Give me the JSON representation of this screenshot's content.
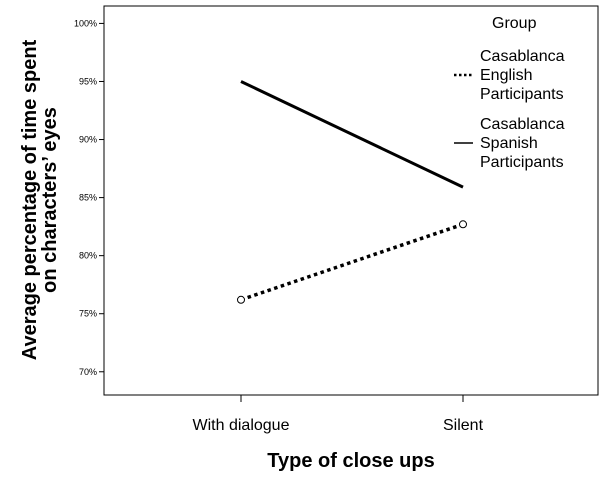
{
  "chart_data": {
    "type": "line",
    "categories": [
      "With dialogue",
      "Silent"
    ],
    "series": [
      {
        "name": "Casablanca English Participants",
        "values": [
          76.2,
          82.7
        ],
        "style": "dotted",
        "markers": true,
        "color": "#000000"
      },
      {
        "name": "Casablanca Spanish Participants",
        "values": [
          95.0,
          85.9
        ],
        "style": "solid",
        "markers": false,
        "color": "#000000"
      }
    ],
    "xlabel": "Type of close ups",
    "ylabel_lines": [
      "Average percentage of time spent",
      "on characters’ eyes"
    ],
    "ylim": [
      68,
      101.5
    ],
    "yticks": [
      70,
      75,
      80,
      85,
      90,
      95,
      100
    ],
    "ytick_labels": [
      "70%",
      "75%",
      "80%",
      "85%",
      "90%",
      "95%",
      "100%"
    ],
    "legend": {
      "title": "Group",
      "placement": "right",
      "entries": [
        {
          "lines": [
            "Casablanca",
            "English",
            "Participants"
          ],
          "style": "dotted"
        },
        {
          "lines": [
            "Casablanca",
            "Spanish",
            "Participants"
          ],
          "style": "solid"
        }
      ]
    },
    "grid": false
  }
}
